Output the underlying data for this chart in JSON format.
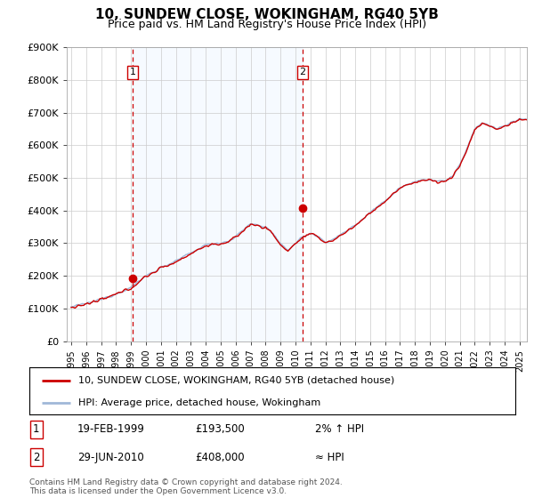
{
  "title": "10, SUNDEW CLOSE, WOKINGHAM, RG40 5YB",
  "subtitle": "Price paid vs. HM Land Registry's House Price Index (HPI)",
  "legend_line1": "10, SUNDEW CLOSE, WOKINGHAM, RG40 5YB (detached house)",
  "legend_line2": "HPI: Average price, detached house, Wokingham",
  "annotation1_label": "1",
  "annotation1_date": "19-FEB-1999",
  "annotation1_price": "£193,500",
  "annotation1_hpi": "2% ↑ HPI",
  "annotation2_label": "2",
  "annotation2_date": "29-JUN-2010",
  "annotation2_price": "£408,000",
  "annotation2_hpi": "≈ HPI",
  "footer": "Contains HM Land Registry data © Crown copyright and database right 2024.\nThis data is licensed under the Open Government Licence v3.0.",
  "sale1_x": 1999.12,
  "sale1_y": 193500,
  "sale2_x": 2010.49,
  "sale2_y": 408000,
  "ylim": [
    0,
    900000
  ],
  "xlim_start": 1994.7,
  "xlim_end": 2025.5,
  "hpi_color": "#a0b8d8",
  "price_color": "#cc0000",
  "vline_color": "#cc0000",
  "shade_color": "#ddeeff",
  "background_color": "#ffffff",
  "grid_color": "#cccccc",
  "title_fontsize": 11,
  "subtitle_fontsize": 9,
  "ytick_labels": [
    "£0",
    "£100K",
    "£200K",
    "£300K",
    "£400K",
    "£500K",
    "£600K",
    "£700K",
    "£800K",
    "£900K"
  ],
  "ytick_values": [
    0,
    100000,
    200000,
    300000,
    400000,
    500000,
    600000,
    700000,
    800000,
    900000
  ],
  "xtick_years": [
    1995,
    1996,
    1997,
    1998,
    1999,
    2000,
    2001,
    2002,
    2003,
    2004,
    2005,
    2006,
    2007,
    2008,
    2009,
    2010,
    2011,
    2012,
    2013,
    2014,
    2015,
    2016,
    2017,
    2018,
    2019,
    2020,
    2021,
    2022,
    2023,
    2024,
    2025
  ]
}
